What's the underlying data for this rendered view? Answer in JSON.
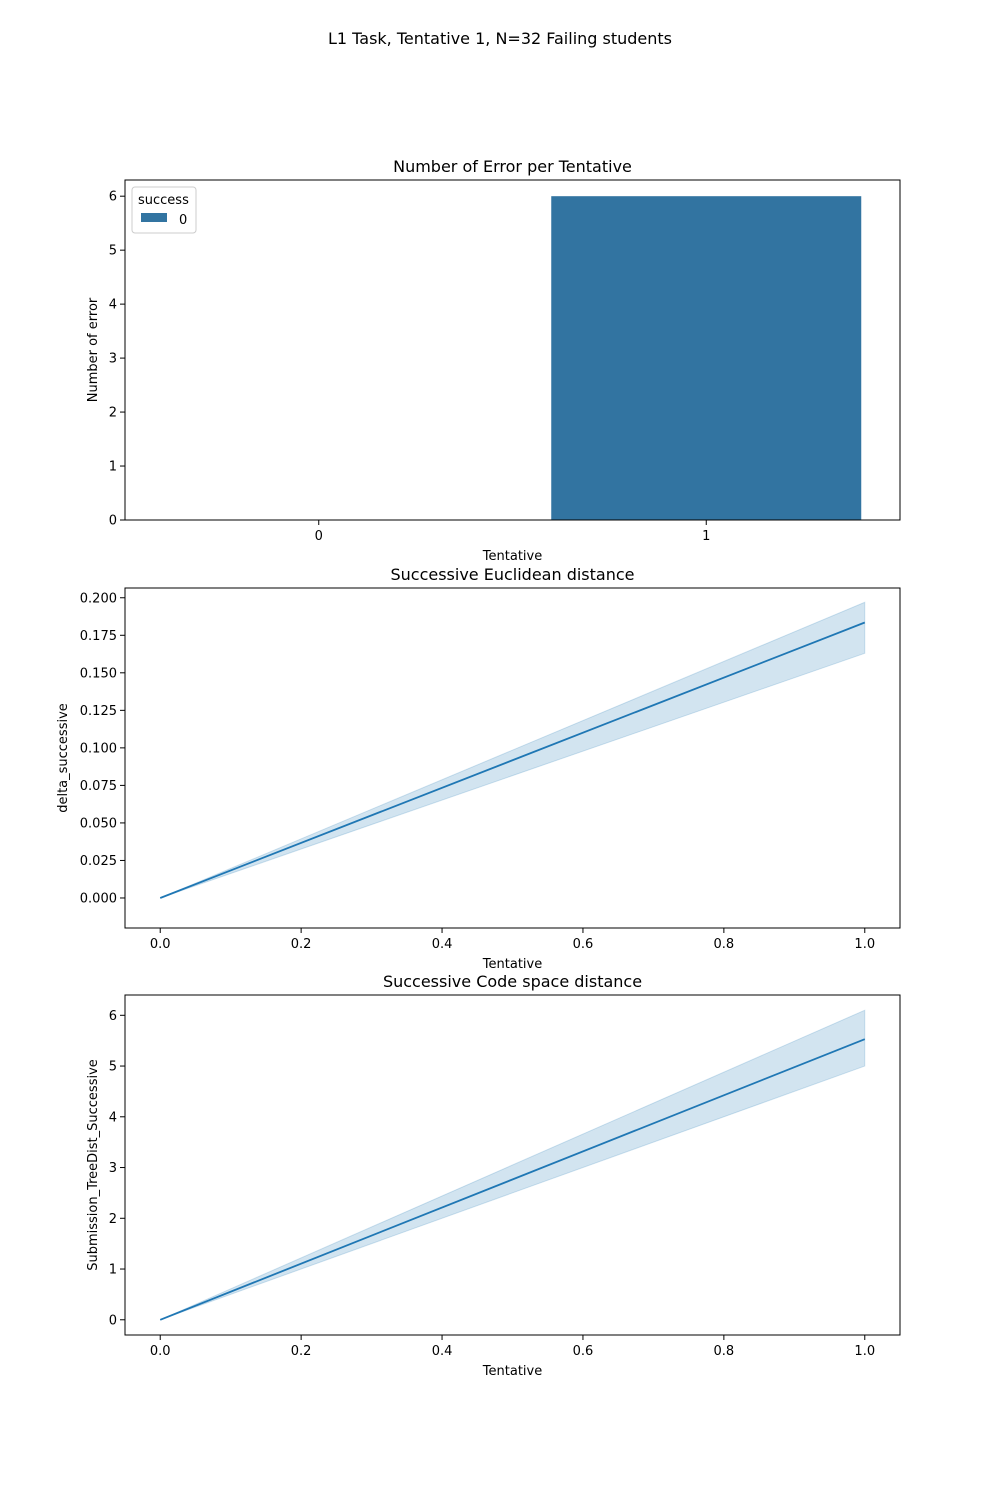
{
  "figure": {
    "suptitle": "L1 Task, Tentative 1, N=32 Failing students"
  },
  "colors": {
    "series": "#3274a1",
    "line": "#1f77b4",
    "band": "#1f77b4"
  },
  "chart_data": [
    {
      "type": "bar",
      "title": "Number of Error per Tentative",
      "xlabel": "Tentative",
      "ylabel": "Number of error",
      "categories": [
        "0",
        "1"
      ],
      "series": [
        {
          "name": "0",
          "values": [
            0,
            6
          ]
        }
      ],
      "legend": {
        "title": "success",
        "placement": "top-left"
      },
      "ylim": [
        0,
        6.3
      ],
      "yticks": [
        "0",
        "1",
        "2",
        "3",
        "4",
        "5",
        "6"
      ],
      "grid": false
    },
    {
      "type": "line",
      "title": "Successive Euclidean distance",
      "xlabel": "Tentative",
      "ylabel": "delta_successive",
      "x": [
        0.0,
        1.0
      ],
      "y": [
        0.0,
        0.1835
      ],
      "ci_lower": [
        0.0,
        0.163
      ],
      "ci_upper": [
        0.0,
        0.197
      ],
      "xlim": [
        -0.05,
        1.05
      ],
      "ylim": [
        -0.02,
        0.2065
      ],
      "xticks": [
        "0.0",
        "0.2",
        "0.4",
        "0.6",
        "0.8",
        "1.0"
      ],
      "yticks": [
        "0.000",
        "0.025",
        "0.050",
        "0.075",
        "0.100",
        "0.125",
        "0.150",
        "0.175",
        "0.200"
      ],
      "grid": false
    },
    {
      "type": "line",
      "title": "Successive Code space distance",
      "xlabel": "Tentative",
      "ylabel": "Submission_TreeDist_Successive",
      "x": [
        0.0,
        1.0
      ],
      "y": [
        0.0,
        5.53
      ],
      "ci_lower": [
        0.0,
        5.0
      ],
      "ci_upper": [
        0.0,
        6.1
      ],
      "xlim": [
        -0.05,
        1.05
      ],
      "ylim": [
        -0.3,
        6.4
      ],
      "xticks": [
        "0.0",
        "0.2",
        "0.4",
        "0.6",
        "0.8",
        "1.0"
      ],
      "yticks": [
        "0",
        "1",
        "2",
        "3",
        "4",
        "5",
        "6"
      ],
      "grid": false
    }
  ]
}
